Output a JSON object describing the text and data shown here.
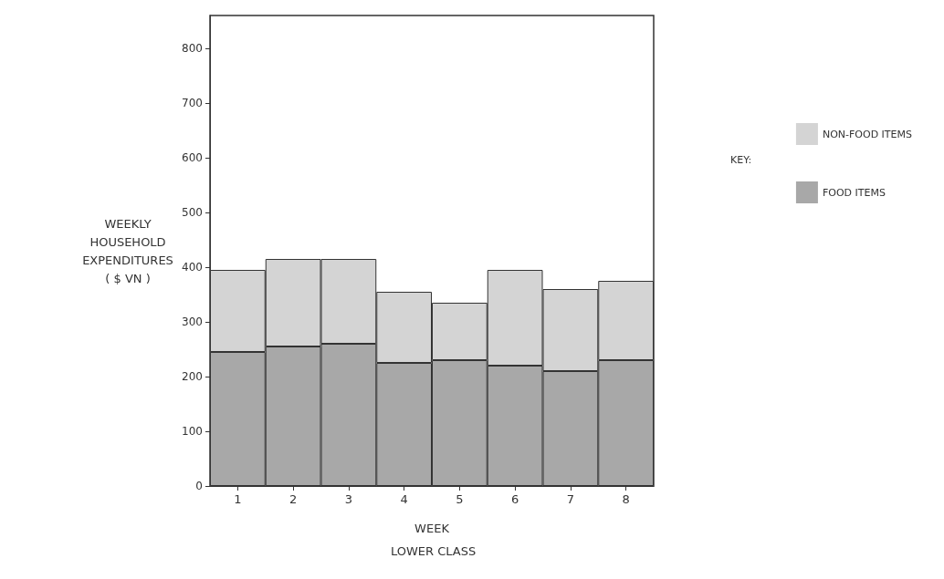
{
  "chart_data": {
    "type": "bar",
    "stacked": true,
    "xlabel": "WEEK",
    "ylabel": "WEEKLY\nHOUSEHOLD\nEXPENDITURES\n( $ VN )",
    "legend_title": "KEY:",
    "legend": "right",
    "annotations": [
      "LOWER CLASS"
    ],
    "categories": [
      "1",
      "2",
      "3",
      "4",
      "5",
      "6",
      "7",
      "8"
    ],
    "series": [
      {
        "name": "FOOD ITEMS",
        "color": "#a8a8a8",
        "values": [
          245,
          255,
          260,
          225,
          230,
          220,
          210,
          230
        ]
      },
      {
        "name": "NON-FOOD ITEMS",
        "color": "#d4d4d4",
        "values": [
          150,
          160,
          155,
          130,
          105,
          175,
          150,
          145
        ]
      }
    ],
    "ylim": [
      0,
      860
    ],
    "yticks": [
      0,
      100,
      200,
      300,
      400,
      500,
      600,
      700,
      800
    ]
  }
}
